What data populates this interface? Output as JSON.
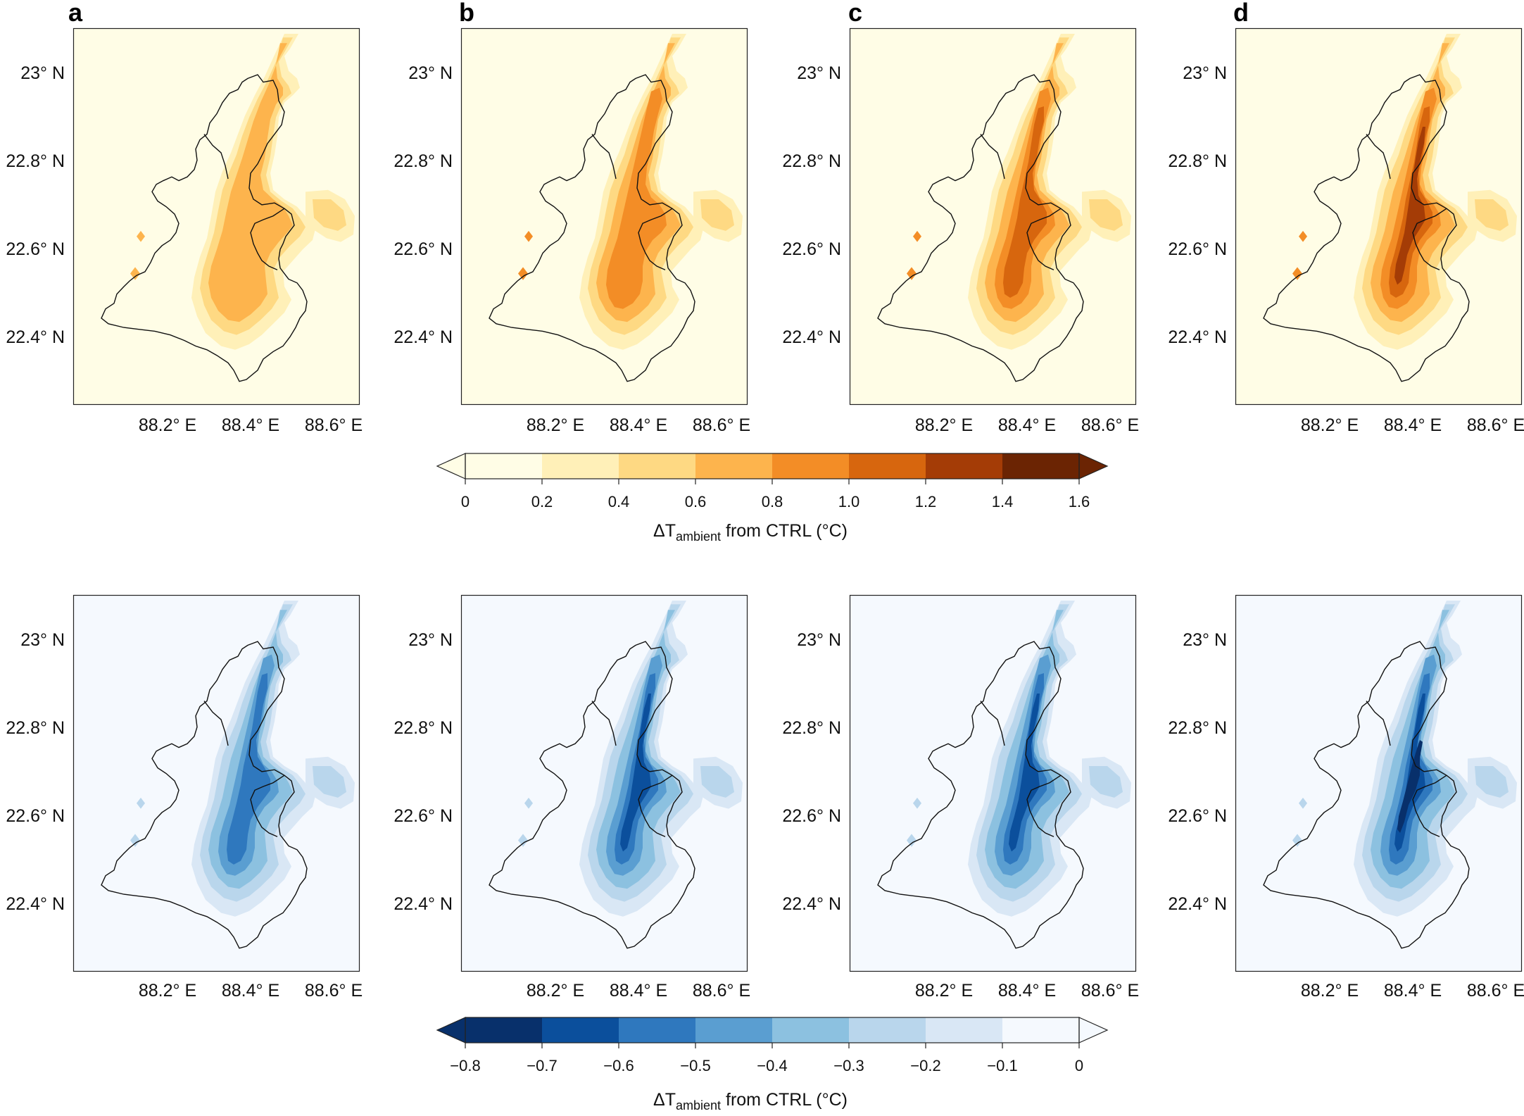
{
  "panel_labels": [
    "a",
    "b",
    "c",
    "d"
  ],
  "lat_ticks": [
    "23° N",
    "22.8° N",
    "22.6° N",
    "22.4° N"
  ],
  "lon_ticks": [
    "88.2° E",
    "88.4° E",
    "88.6° E"
  ],
  "colorbars": {
    "warm": {
      "title_prefix": "ΔT",
      "title_sub": "ambient",
      "title_suffix": " from CTRL (°C)",
      "ticks": [
        "0",
        "0.2",
        "0.4",
        "0.6",
        "0.8",
        "1.0",
        "1.2",
        "1.4",
        "1.6"
      ],
      "colors": [
        "#fffde6",
        "#fff0b8",
        "#fed983",
        "#fdb44d",
        "#f38d26",
        "#d7660e",
        "#a43c06",
        "#6b2403"
      ],
      "background": "#fffde6",
      "extend": "max"
    },
    "cool": {
      "title_prefix": "ΔT",
      "title_sub": "ambient",
      "title_suffix": " from CTRL (°C)",
      "ticks": [
        "−0.8",
        "−0.7",
        "−0.6",
        "−0.5",
        "−0.4",
        "−0.3",
        "−0.2",
        "−0.1",
        "0"
      ],
      "colors": [
        "#08306b",
        "#0b4f9c",
        "#2f78be",
        "#5a9ed1",
        "#8cc1e0",
        "#b9d6ec",
        "#d9e7f5",
        "#f5f9fe"
      ],
      "background": "#f5f9fe",
      "extend": "min"
    }
  },
  "panels_top": [
    0.75,
    1.0,
    1.2,
    1.4
  ],
  "panels_bottom": [
    0.6,
    0.7,
    0.7,
    0.85
  ]
}
